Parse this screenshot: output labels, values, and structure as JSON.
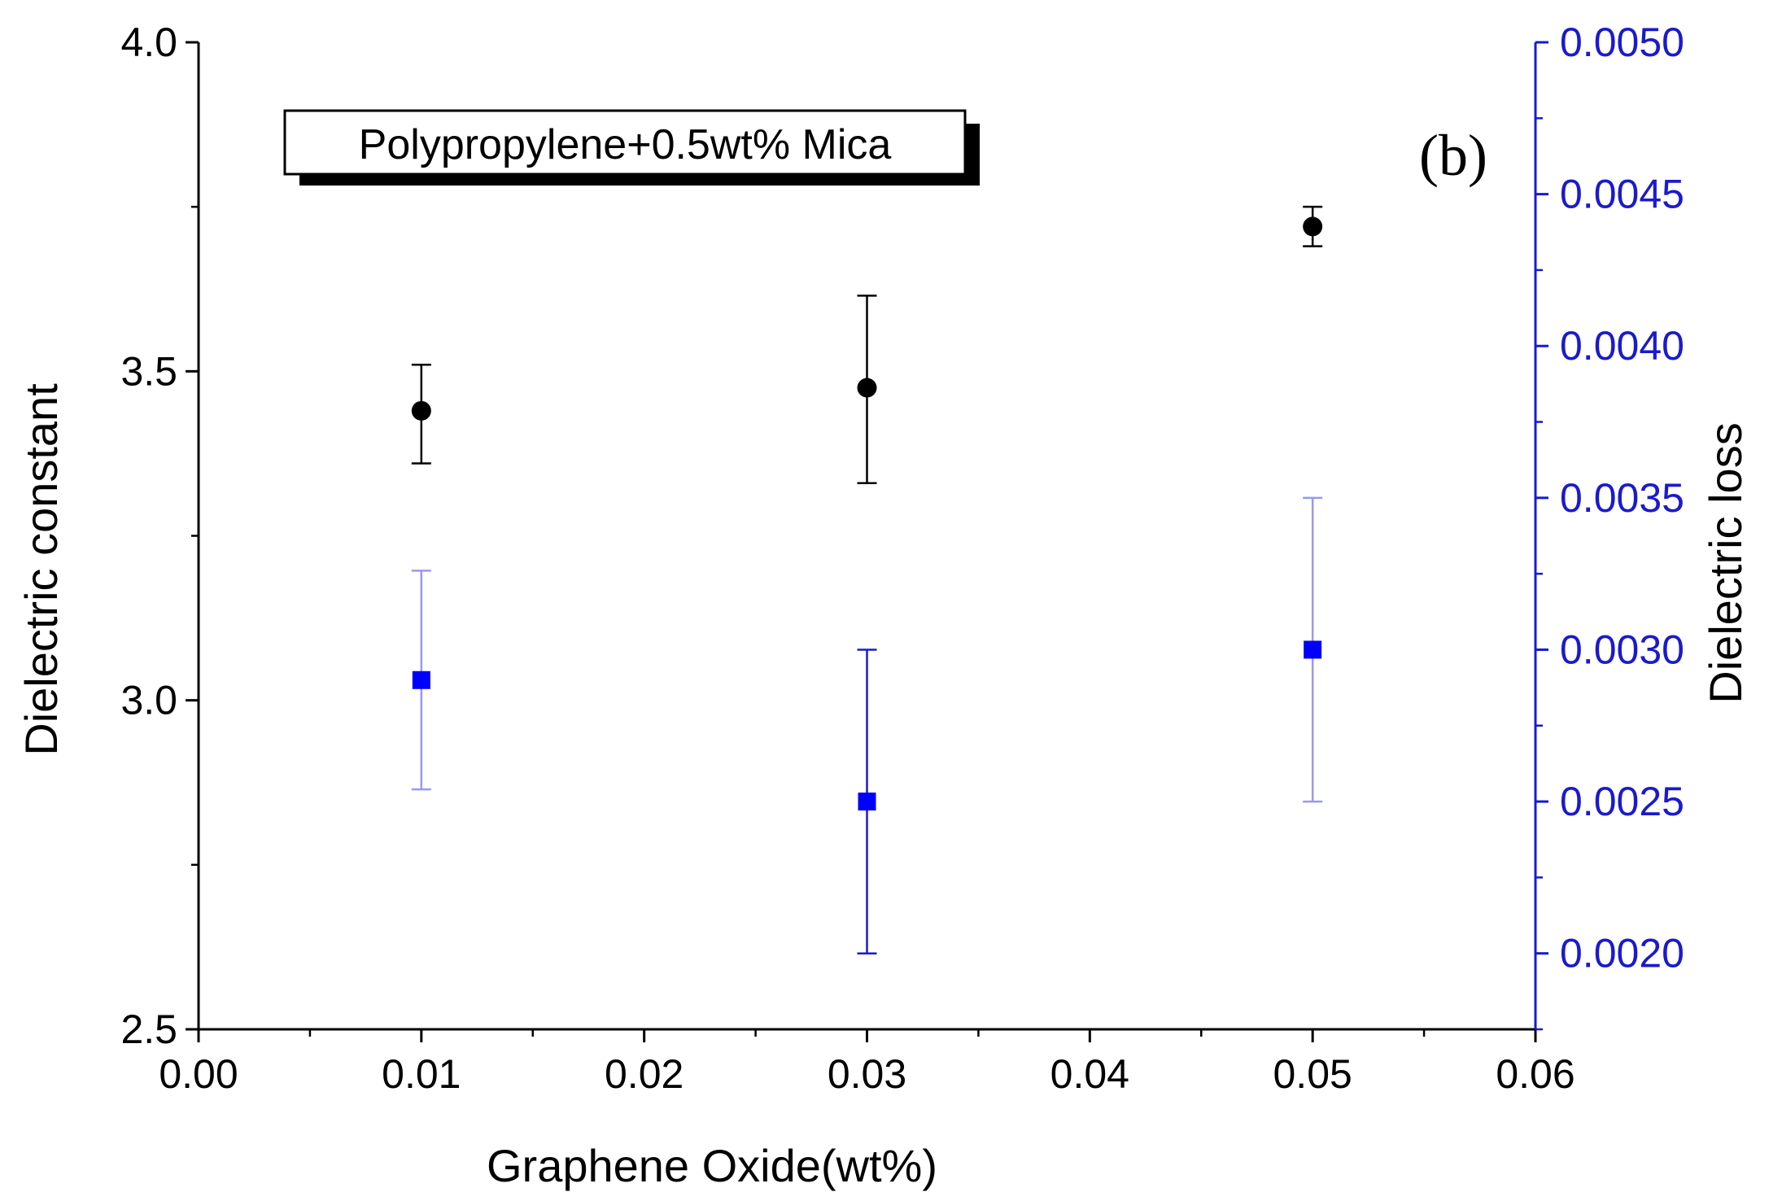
{
  "chart_data": {
    "type": "scatter",
    "x_axis": {
      "label": "Graphene Oxide(wt%)",
      "range": [
        0.0,
        0.06
      ],
      "ticks": [
        "0.00",
        "0.01",
        "0.02",
        "0.03",
        "0.04",
        "0.05",
        "0.06"
      ],
      "tick_values": [
        0.0,
        0.01,
        0.02,
        0.03,
        0.04,
        0.05,
        0.06
      ]
    },
    "y_left": {
      "label": "Dielectric constant",
      "range": [
        2.5,
        4.0
      ],
      "ticks": [
        "2.5",
        "3.0",
        "3.5",
        "4.0"
      ],
      "tick_values": [
        2.5,
        3.0,
        3.5,
        4.0
      ]
    },
    "y_right": {
      "label": "Dielectric loss",
      "range": [
        0.00175,
        0.005
      ],
      "ticks": [
        "0.0020",
        "0.0025",
        "0.0030",
        "0.0035",
        "0.0040",
        "0.0045",
        "0.0050"
      ],
      "tick_values": [
        0.002,
        0.0025,
        0.003,
        0.0035,
        0.004,
        0.0045,
        0.005
      ],
      "color": "#1a1acc"
    },
    "series": [
      {
        "name": "Dielectric constant",
        "axis": "left",
        "marker": "circle",
        "color": "#000000",
        "x": [
          0.01,
          0.03,
          0.05
        ],
        "y": [
          3.44,
          3.475,
          3.72
        ],
        "err_low": [
          3.36,
          3.33,
          3.69
        ],
        "err_high": [
          3.51,
          3.615,
          3.75
        ]
      },
      {
        "name": "Dielectric loss",
        "axis": "right",
        "marker": "square",
        "color": "#0000ff",
        "x": [
          0.01,
          0.03,
          0.05
        ],
        "y": [
          0.0029,
          0.0025,
          0.003
        ],
        "err_low": [
          0.00254,
          0.002,
          0.0025
        ],
        "err_high": [
          0.00326,
          0.003,
          0.0035
        ]
      }
    ],
    "legend_text": "Polypropylene+0.5wt% Mica",
    "legend_placement": "top-left",
    "panel_label": "(b)"
  }
}
